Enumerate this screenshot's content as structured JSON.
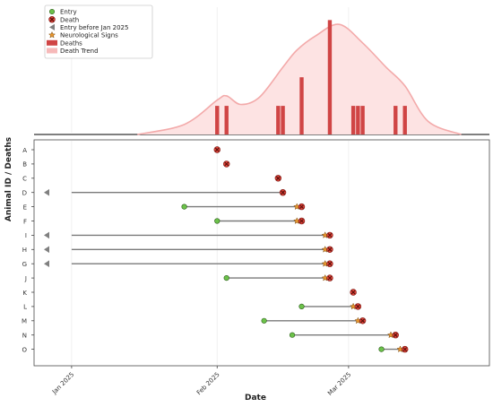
{
  "chart_data": [
    {
      "type": "area",
      "panel": "deaths-histogram",
      "legend_position": "top-left",
      "x_range": [
        "2024-12-24",
        "2025-03-31"
      ],
      "deaths_bars": [
        {
          "date": "2025-02-01",
          "count": 1
        },
        {
          "date": "2025-02-03",
          "count": 1
        },
        {
          "date": "2025-02-14",
          "count": 1
        },
        {
          "date": "2025-02-15",
          "count": 1
        },
        {
          "date": "2025-02-19",
          "count": 2
        },
        {
          "date": "2025-02-25",
          "count": 4
        },
        {
          "date": "2025-03-02",
          "count": 1
        },
        {
          "date": "2025-03-03",
          "count": 1
        },
        {
          "date": "2025-03-04",
          "count": 1
        },
        {
          "date": "2025-03-11",
          "count": 1
        },
        {
          "date": "2025-03-13",
          "count": 1
        }
      ],
      "death_trend": [
        {
          "x": "2025-01-15",
          "y": 0.0
        },
        {
          "x": "2025-01-25",
          "y": 0.35
        },
        {
          "x": "2025-02-01",
          "y": 1.2
        },
        {
          "x": "2025-02-03",
          "y": 1.35
        },
        {
          "x": "2025-02-06",
          "y": 1.05
        },
        {
          "x": "2025-02-10",
          "y": 1.3
        },
        {
          "x": "2025-02-15",
          "y": 2.35
        },
        {
          "x": "2025-02-18",
          "y": 2.95
        },
        {
          "x": "2025-02-22",
          "y": 3.45
        },
        {
          "x": "2025-02-27",
          "y": 3.85
        },
        {
          "x": "2025-03-04",
          "y": 3.2
        },
        {
          "x": "2025-03-09",
          "y": 2.35
        },
        {
          "x": "2025-03-13",
          "y": 1.7
        },
        {
          "x": "2025-03-18",
          "y": 0.45
        },
        {
          "x": "2025-03-25",
          "y": 0.0
        }
      ],
      "y_range": [
        0,
        4.2
      ]
    },
    {
      "type": "scatter",
      "panel": "animal-timeline",
      "ylabel": "Animal ID / Deaths",
      "xlabel": "Date",
      "x_ticks": [
        {
          "date": "2025-01-01",
          "label": "Jan 2025"
        },
        {
          "date": "2025-02-01",
          "label": "Feb 2025"
        },
        {
          "date": "2025-03-01",
          "label": "Mar 2025"
        }
      ],
      "grid": true,
      "animals": [
        {
          "id": "A",
          "entry": "2025-02-01",
          "neuro": null,
          "death": "2025-02-01",
          "entry_before_2025": false
        },
        {
          "id": "B",
          "entry": "2025-02-03",
          "neuro": null,
          "death": "2025-02-03",
          "entry_before_2025": false
        },
        {
          "id": "C",
          "entry": "2025-02-14",
          "neuro": null,
          "death": "2025-02-14",
          "entry_before_2025": false
        },
        {
          "id": "D",
          "entry": null,
          "neuro": null,
          "death": "2025-02-15",
          "entry_before_2025": true
        },
        {
          "id": "E",
          "entry": "2025-01-25",
          "neuro": "2025-02-18",
          "death": "2025-02-19",
          "entry_before_2025": false
        },
        {
          "id": "F",
          "entry": "2025-02-01",
          "neuro": "2025-02-18",
          "death": "2025-02-19",
          "entry_before_2025": false
        },
        {
          "id": "I",
          "entry": null,
          "neuro": "2025-02-24",
          "death": "2025-02-25",
          "entry_before_2025": true
        },
        {
          "id": "H",
          "entry": null,
          "neuro": "2025-02-24",
          "death": "2025-02-25",
          "entry_before_2025": true
        },
        {
          "id": "G",
          "entry": null,
          "neuro": "2025-02-24",
          "death": "2025-02-25",
          "entry_before_2025": true
        },
        {
          "id": "J",
          "entry": "2025-02-03",
          "neuro": "2025-02-24",
          "death": "2025-02-25",
          "entry_before_2025": false
        },
        {
          "id": "K",
          "entry": "2025-03-02",
          "neuro": null,
          "death": "2025-03-02",
          "entry_before_2025": false
        },
        {
          "id": "L",
          "entry": "2025-02-19",
          "neuro": "2025-03-02",
          "death": "2025-03-03",
          "entry_before_2025": false
        },
        {
          "id": "M",
          "entry": "2025-02-11",
          "neuro": "2025-03-03",
          "death": "2025-03-04",
          "entry_before_2025": false
        },
        {
          "id": "N",
          "entry": "2025-02-17",
          "neuro": "2025-03-10",
          "death": "2025-03-11",
          "entry_before_2025": false
        },
        {
          "id": "O",
          "entry": "2025-03-08",
          "neuro": "2025-03-12",
          "death": "2025-03-13",
          "entry_before_2025": false
        }
      ]
    }
  ],
  "legend": [
    {
      "key": "entry",
      "label": "Entry"
    },
    {
      "key": "death",
      "label": "Death"
    },
    {
      "key": "entry_before",
      "label": "Entry before Jan 2025"
    },
    {
      "key": "neuro",
      "label": "Neurological Signs"
    },
    {
      "key": "deaths",
      "label": "Deaths"
    },
    {
      "key": "trend",
      "label": "Death Trend"
    }
  ],
  "colors": {
    "entry": "#6cc24a",
    "death": "#e0443a",
    "neuro": "#e8962e",
    "bar": "#d04545",
    "trend_fill": "#fde3e3",
    "trend_line": "#f3aaaa",
    "before": "#808080",
    "line": "#7a7a7a"
  }
}
